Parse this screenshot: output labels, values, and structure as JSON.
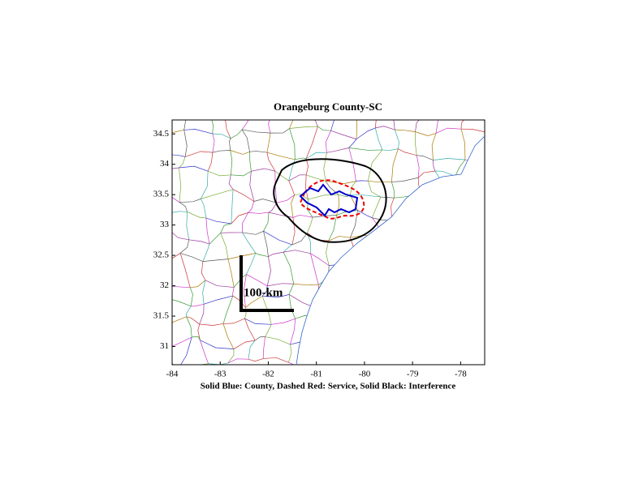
{
  "chart_data": {
    "type": "map",
    "title": "Orangeburg County-SC",
    "xlabel": "Solid Blue: County, Dashed Red: Service, Solid Black: Interference",
    "annotation": "100-km",
    "xlim": [
      -84,
      -77.5
    ],
    "xticks": [
      -84,
      -83,
      -82,
      -81,
      -80,
      -79,
      -78
    ],
    "ylim": [
      30.7,
      34.73
    ],
    "yticks": [
      31,
      31.5,
      32,
      32.5,
      33,
      33.5,
      34,
      34.5
    ]
  }
}
